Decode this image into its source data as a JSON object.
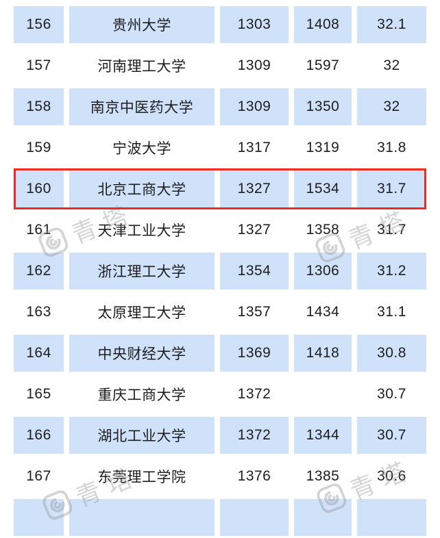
{
  "page": {
    "background_color": "#ffffff",
    "shaded_row_color": "#cfe2fa",
    "text_color": "#1d1d1f",
    "highlight_border_color": "#ee2b21"
  },
  "table": {
    "column_keys": [
      "rank",
      "name",
      "value1",
      "value2",
      "score"
    ],
    "rows": [
      {
        "rank": "156",
        "name": "贵州大学",
        "value1": "1303",
        "value2": "1408",
        "score": "32.1",
        "highlighted": false
      },
      {
        "rank": "157",
        "name": "河南理工大学",
        "value1": "1309",
        "value2": "1597",
        "score": "32",
        "highlighted": false
      },
      {
        "rank": "158",
        "name": "南京中医药大学",
        "value1": "1309",
        "value2": "1350",
        "score": "32",
        "highlighted": false
      },
      {
        "rank": "159",
        "name": "宁波大学",
        "value1": "1317",
        "value2": "1319",
        "score": "31.8",
        "highlighted": false
      },
      {
        "rank": "160",
        "name": "北京工商大学",
        "value1": "1327",
        "value2": "1534",
        "score": "31.7",
        "highlighted": true
      },
      {
        "rank": "161",
        "name": "天津工业大学",
        "value1": "1327",
        "value2": "1358",
        "score": "31.7",
        "highlighted": false
      },
      {
        "rank": "162",
        "name": "浙江理工大学",
        "value1": "1354",
        "value2": "1306",
        "score": "31.2",
        "highlighted": false
      },
      {
        "rank": "163",
        "name": "太原理工大学",
        "value1": "1357",
        "value2": "1434",
        "score": "31.1",
        "highlighted": false
      },
      {
        "rank": "164",
        "name": "中央财经大学",
        "value1": "1369",
        "value2": "1418",
        "score": "30.8",
        "highlighted": false
      },
      {
        "rank": "165",
        "name": "重庆工商大学",
        "value1": "1372",
        "value2": "",
        "score": "30.7",
        "highlighted": false
      },
      {
        "rank": "166",
        "name": "湖北工业大学",
        "value1": "1372",
        "value2": "1344",
        "score": "30.7",
        "highlighted": false
      },
      {
        "rank": "167",
        "name": "东莞理工学院",
        "value1": "1376",
        "value2": "1385",
        "score": "30.6",
        "highlighted": false
      },
      {
        "rank": "",
        "name": "",
        "value1": "",
        "value2": "",
        "score": "",
        "highlighted": false,
        "partial": true
      }
    ]
  },
  "watermark": {
    "text": "青塔",
    "icon": "qingta-logo-icon",
    "color": "#9a9a9a"
  }
}
